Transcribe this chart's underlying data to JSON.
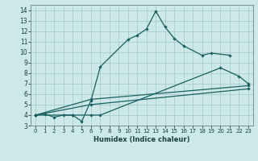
{
  "xlabel": "Humidex (Indice chaleur)",
  "ylabel": "",
  "xlim": [
    -0.5,
    23.5
  ],
  "ylim": [
    3,
    14.5
  ],
  "xtick_labels": [
    "0",
    "1",
    "2",
    "3",
    "4",
    "5",
    "6",
    "7",
    "8",
    "9",
    "10",
    "11",
    "12",
    "13",
    "14",
    "15",
    "16",
    "17",
    "18",
    "19",
    "20",
    "21",
    "22",
    "23"
  ],
  "xticks": [
    0,
    1,
    2,
    3,
    4,
    5,
    6,
    7,
    8,
    9,
    10,
    11,
    12,
    13,
    14,
    15,
    16,
    17,
    18,
    19,
    20,
    21,
    22,
    23
  ],
  "yticks": [
    3,
    4,
    5,
    6,
    7,
    8,
    9,
    10,
    11,
    12,
    13,
    14
  ],
  "ytick_labels": [
    "3",
    "4",
    "5",
    "6",
    "7",
    "8",
    "9",
    "10",
    "11",
    "12",
    "13",
    "14"
  ],
  "bg_color": "#cce8e8",
  "grid_color": "#aacccc",
  "line_color": "#1a6060",
  "series": [
    {
      "x": [
        0,
        1,
        2,
        3,
        4,
        5,
        6,
        7,
        10,
        11,
        12,
        13,
        14,
        15,
        16,
        18,
        19,
        21
      ],
      "y": [
        4.0,
        4.1,
        3.8,
        4.0,
        4.0,
        3.4,
        5.4,
        8.6,
        11.2,
        11.6,
        12.2,
        13.9,
        12.4,
        11.3,
        10.6,
        9.7,
        9.9,
        9.7
      ]
    },
    {
      "comment": "line from cluster to x=20 y=8.5, then x=22 y=7.7, x=23 y=7.0",
      "x": [
        0,
        4,
        6,
        7,
        20,
        22,
        23
      ],
      "y": [
        4.0,
        4.0,
        4.0,
        4.0,
        8.5,
        7.7,
        7.0
      ]
    },
    {
      "x": [
        0,
        6,
        23
      ],
      "y": [
        4.0,
        5.0,
        6.5
      ]
    },
    {
      "comment": "line from x=0 y=4 to x=23 y=6.8",
      "x": [
        0,
        6,
        23
      ],
      "y": [
        4.0,
        5.5,
        6.8
      ]
    }
  ]
}
